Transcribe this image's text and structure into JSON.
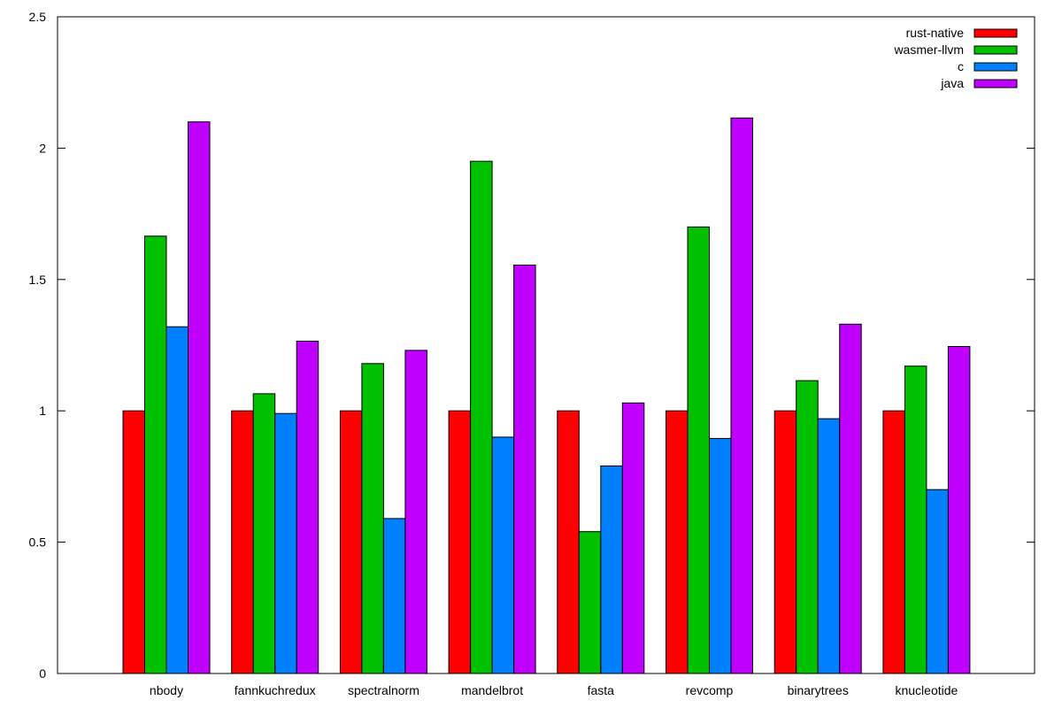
{
  "chart_data": {
    "type": "bar",
    "title": "",
    "xlabel": "",
    "ylabel": "",
    "ylim": [
      0,
      2.5
    ],
    "yticks": [
      "0",
      "0.5",
      "1",
      "1.5",
      "2",
      "2.5"
    ],
    "grid": false,
    "legend_position": "top-right",
    "categories": [
      "nbody",
      "fannkuchredux",
      "spectralnorm",
      "mandelbrot",
      "fasta",
      "revcomp",
      "binarytrees",
      "knucleotide"
    ],
    "series": [
      {
        "name": "rust-native",
        "color": "#ff0000",
        "values": [
          1.0,
          1.0,
          1.0,
          1.0,
          1.0,
          1.0,
          1.0,
          1.0
        ]
      },
      {
        "name": "wasmer-llvm",
        "color": "#00c000",
        "values": [
          1.665,
          1.065,
          1.18,
          1.95,
          0.54,
          1.7,
          1.115,
          1.17
        ]
      },
      {
        "name": "c",
        "color": "#0080ff",
        "values": [
          1.32,
          0.99,
          0.59,
          0.9,
          0.79,
          0.895,
          0.97,
          0.7
        ]
      },
      {
        "name": "java",
        "color": "#c000ff",
        "values": [
          2.1,
          1.265,
          1.23,
          1.555,
          1.03,
          2.115,
          1.33,
          1.245
        ]
      }
    ]
  }
}
